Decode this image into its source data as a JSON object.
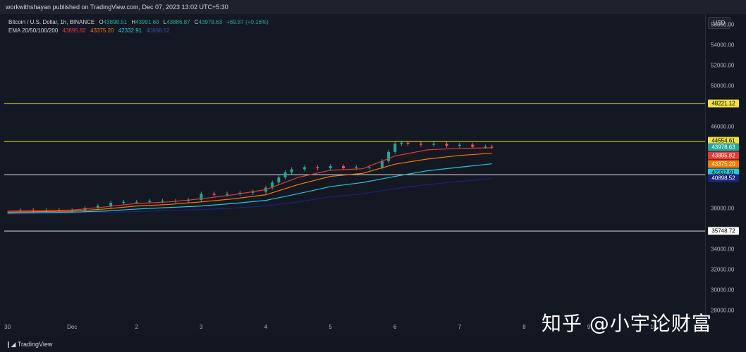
{
  "topbar": {
    "text": "workwithshayan published on TradingView.com, Dec 07, 2023 13:02 UTC+5:30"
  },
  "legend": {
    "symbol": "Bitcoin / U.S. Dollar, 1h, BINANCE",
    "o_label": "O",
    "o": "43898.51",
    "h_label": "H",
    "h": "43991.60",
    "l_label": "L",
    "l": "43886.87",
    "c_label": "C",
    "c": "43978.63",
    "chg": "+69.87 (+0.16%)",
    "ema_label": "EMA 20/50/100/200",
    "ema20": "43895.82",
    "ema50": "43375.20",
    "ema100": "42332.91",
    "ema200": "40898.52"
  },
  "currency": "USD",
  "colors": {
    "up": "#26a69a",
    "down": "#ef5350",
    "ema20": "#e53935",
    "ema50": "#f57c00",
    "ema100": "#26c6da",
    "ema200": "#1a237e",
    "resistance": "#f0e040",
    "support": "#e0e3eb"
  },
  "footer": {
    "brand": "TradingView"
  },
  "watermark": "知乎 @小宇论财富",
  "chart_data": {
    "type": "line",
    "title": "Bitcoin / U.S. Dollar, 1h, BINANCE",
    "ylim": [
      27000,
      57000
    ],
    "y_ticks": [
      "56000.00",
      "54000.00",
      "52000.00",
      "50000.00",
      "46000.00",
      "38000.00",
      "34000.00",
      "32000.00",
      "30000.00",
      "28000.00"
    ],
    "y_tick_values": [
      56000,
      54000,
      52000,
      50000,
      46000,
      38000,
      34000,
      32000,
      30000,
      28000
    ],
    "x_ticks": [
      "30",
      "Dec",
      "2",
      "3",
      "4",
      "5",
      "6",
      "7",
      "8",
      "9",
      "10"
    ],
    "x_tick_values": [
      0,
      1,
      2,
      3,
      4,
      5,
      6,
      7,
      8,
      9,
      10
    ],
    "xlim": [
      -0.05,
      10.8
    ],
    "horizontal_levels": [
      {
        "value": 48221.12,
        "label": "48221.12",
        "color": "#f0e040"
      },
      {
        "value": 44554.61,
        "label": "44554.61",
        "color": "#f0e040"
      },
      {
        "value": 41270.35,
        "label": "41270.35",
        "color": "#e0e3eb"
      },
      {
        "value": 35748.72,
        "label": "35748.72",
        "color": "#e0e3eb"
      }
    ],
    "price_labels": [
      {
        "value": 43978.63,
        "label": "43978.63",
        "bg": "#26a69a",
        "fg": "#ffffff"
      },
      {
        "value": 43895.82,
        "label": "43895.82",
        "bg": "#e53935",
        "fg": "#ffffff"
      },
      {
        "value": 43375.2,
        "label": "43375.20",
        "bg": "#f57c00",
        "fg": "#ffffff"
      },
      {
        "value": 42332.91,
        "label": "42332.91",
        "bg": "#26c6da",
        "fg": "#000000"
      },
      {
        "value": 40898.52,
        "label": "40898.52",
        "bg": "#1a237e",
        "fg": "#ffffff"
      }
    ],
    "price_series": {
      "x": [
        0,
        0.2,
        0.4,
        0.6,
        0.8,
        1.0,
        1.2,
        1.4,
        1.6,
        1.8,
        2.0,
        2.2,
        2.4,
        2.6,
        2.8,
        3.0,
        3.2,
        3.4,
        3.6,
        3.8,
        4.0,
        4.1,
        4.2,
        4.3,
        4.4,
        4.6,
        4.8,
        5.0,
        5.2,
        5.4,
        5.6,
        5.8,
        5.9,
        6.0,
        6.1,
        6.2,
        6.4,
        6.6,
        6.8,
        7.0,
        7.2,
        7.4,
        7.5
      ],
      "y": [
        37800,
        37800,
        37700,
        37800,
        37700,
        37800,
        38000,
        38200,
        38500,
        38600,
        38600,
        38700,
        38700,
        38700,
        38800,
        39400,
        39300,
        39400,
        39500,
        39600,
        40000,
        40500,
        41000,
        41500,
        41800,
        42000,
        41900,
        42100,
        41900,
        42000,
        42000,
        42600,
        43500,
        44300,
        44400,
        44300,
        44200,
        44300,
        44100,
        44200,
        44000,
        44000,
        43980
      ]
    },
    "series": [
      {
        "name": "EMA 20",
        "x": [
          0,
          0.5,
          1.0,
          1.5,
          2.0,
          2.5,
          3.0,
          3.5,
          4.0,
          4.5,
          5.0,
          5.5,
          6.0,
          6.5,
          7.0,
          7.5
        ],
        "y": [
          37700,
          37750,
          37800,
          38100,
          38450,
          38600,
          38900,
          39300,
          39800,
          41000,
          41700,
          41850,
          43100,
          43700,
          43850,
          43900
        ]
      },
      {
        "name": "EMA 50",
        "x": [
          0,
          0.5,
          1.0,
          1.5,
          2.0,
          2.5,
          3.0,
          3.5,
          4.0,
          4.5,
          5.0,
          5.5,
          6.0,
          6.5,
          7.0,
          7.5
        ],
        "y": [
          37600,
          37650,
          37700,
          37900,
          38200,
          38350,
          38600,
          38900,
          39300,
          40300,
          41100,
          41400,
          42300,
          42800,
          43150,
          43375
        ]
      },
      {
        "name": "EMA 100",
        "x": [
          0,
          0.5,
          1.0,
          1.5,
          2.0,
          2.5,
          3.0,
          3.5,
          4.0,
          4.5,
          5.0,
          5.5,
          6.0,
          6.5,
          7.0,
          7.5
        ],
        "y": [
          37500,
          37550,
          37600,
          37700,
          37900,
          38050,
          38200,
          38450,
          38750,
          39400,
          40100,
          40500,
          41100,
          41650,
          42000,
          42333
        ]
      },
      {
        "name": "EMA 200",
        "x": [
          0,
          0.5,
          1.0,
          1.5,
          2.0,
          2.5,
          3.0,
          3.5,
          4.0,
          4.5,
          5.0,
          5.5,
          6.0,
          6.5,
          7.0,
          7.5
        ],
        "y": [
          37400,
          37450,
          37500,
          37550,
          37650,
          37750,
          37850,
          38000,
          38200,
          38600,
          39100,
          39400,
          39900,
          40300,
          40600,
          40898
        ]
      }
    ]
  }
}
